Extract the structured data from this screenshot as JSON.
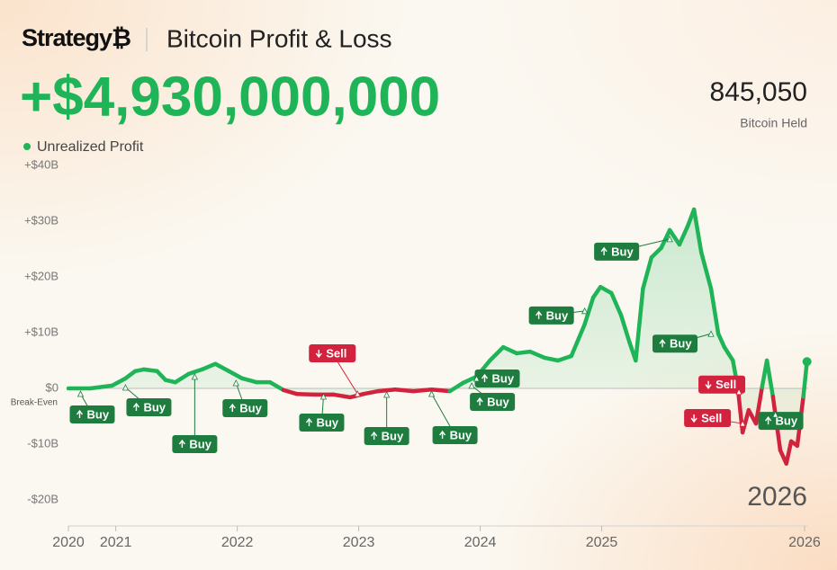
{
  "chart_data": {
    "type": "line",
    "logo": "Strategy₿",
    "title": "Bitcoin Profit & Loss",
    "headline": "+$4,930,000,000",
    "stat": {
      "value": "845,050",
      "label": "Bitcoin Held"
    },
    "watermark": "2026",
    "zero_label": "Break-Even",
    "x": [
      2020.61,
      2020.79,
      2020.97,
      2021.08,
      2021.16,
      2021.23,
      2021.34,
      2021.41,
      2021.49,
      2021.6,
      2021.71,
      2021.82,
      2021.93,
      2022.04,
      2022.16,
      2022.27,
      2022.38,
      2022.49,
      2022.64,
      2022.79,
      2022.93,
      2023.04,
      2023.16,
      2023.3,
      2023.45,
      2023.6,
      2023.75,
      2023.86,
      2023.97,
      2024.08,
      2024.19,
      2024.3,
      2024.41,
      2024.53,
      2024.64,
      2024.75,
      2024.86,
      2024.93,
      2024.99,
      2025.08,
      2025.16,
      2025.23,
      2025.28,
      2025.34,
      2025.41,
      2025.49,
      2025.56,
      2025.64,
      2025.71,
      2025.76,
      2025.82,
      2025.9,
      2025.96,
      2026.01,
      2026.08,
      2026.12,
      2026.16,
      2026.21,
      2026.27,
      2026.32,
      2026.36,
      2026.41,
      2026.47,
      2026.52,
      2026.56,
      2026.61,
      2026.66,
      2026.69
    ],
    "series": [
      {
        "name": "Unrealized Profit",
        "color": "#1fb457",
        "negative_color": "#d3223d",
        "values": [
          0,
          0,
          0.5,
          1.8,
          3.1,
          3.4,
          3.1,
          1.5,
          1.1,
          2.6,
          3.4,
          4.4,
          3.1,
          1.8,
          1.1,
          1.1,
          -0.3,
          -1,
          -1.1,
          -1.1,
          -1.6,
          -1,
          -0.5,
          -0.2,
          -0.5,
          -0.2,
          -0.5,
          1,
          2.1,
          5,
          7.4,
          6.3,
          6.6,
          5.5,
          5,
          5.8,
          11.5,
          16.3,
          18.2,
          17.1,
          13.1,
          8.2,
          5,
          17.9,
          23.5,
          25.2,
          28.4,
          25.8,
          29.2,
          32.1,
          24.4,
          17.9,
          9.8,
          7.4,
          5,
          0.2,
          -7.9,
          -3.9,
          -6.3,
          0.2,
          5,
          -1.5,
          -11.1,
          -13.5,
          -9.5,
          -10.3,
          -1.5,
          4.8
        ]
      }
    ],
    "xlim": [
      2020.61,
      2026.7
    ],
    "xticks": [
      {
        "value": 2020.61,
        "label": "2020"
      },
      2021,
      2022,
      2023,
      2024,
      2025,
      {
        "value": 2026.67,
        "label": "2026"
      }
    ],
    "ylim": [
      -25,
      40
    ],
    "yticks": [
      {
        "value": 40,
        "label": "+$40B"
      },
      {
        "value": 30,
        "label": "+$30B"
      },
      {
        "value": 20,
        "label": "+$20B"
      },
      {
        "value": 10,
        "label": "+$10B"
      },
      {
        "value": 0,
        "label": "$0"
      },
      {
        "value": -10,
        "label": "-$10B"
      },
      {
        "value": -20,
        "label": "-$20B"
      }
    ],
    "grid": false,
    "annotations": [
      {
        "label": "Buy",
        "arrow": "up",
        "color": "#1e7d3e",
        "x": 2020.71,
        "y": -0.97
      },
      {
        "label": "Buy",
        "arrow": "up",
        "color": "#1e7d3e",
        "x": 2021.08,
        "y": 0.16
      },
      {
        "label": "Buy",
        "arrow": "up",
        "color": "#1e7d3e",
        "x": 2021.65,
        "y": 2.1
      },
      {
        "label": "Buy",
        "arrow": "up",
        "color": "#1e7d3e",
        "x": 2021.99,
        "y": 0.97
      },
      {
        "label": "Sell",
        "arrow": "down",
        "color": "#d3223d",
        "x": 2022.99,
        "y": -0.97
      },
      {
        "label": "Buy",
        "arrow": "up",
        "color": "#1e7d3e",
        "x": 2022.71,
        "y": -1.45
      },
      {
        "label": "Buy",
        "arrow": "up",
        "color": "#1e7d3e",
        "x": 2023.23,
        "y": -1.13
      },
      {
        "label": "Buy",
        "arrow": "up",
        "color": "#1e7d3e",
        "x": 2023.6,
        "y": -0.97
      },
      {
        "label": "Buy",
        "arrow": "up",
        "color": "#1e7d3e",
        "x": 2023.97,
        "y": 1.77
      },
      {
        "label": "Buy",
        "arrow": "up",
        "color": "#1e7d3e",
        "x": 2023.93,
        "y": 0.48
      },
      {
        "label": "Buy",
        "arrow": "up",
        "color": "#1e7d3e",
        "x": 2024.86,
        "y": 13.9
      },
      {
        "label": "Buy",
        "arrow": "up",
        "color": "#1e7d3e",
        "x": 2025.56,
        "y": 26.8
      },
      {
        "label": "Buy",
        "arrow": "up",
        "color": "#1e7d3e",
        "x": 2025.9,
        "y": 9.8
      },
      {
        "label": "Sell",
        "arrow": "down",
        "color": "#d3223d",
        "x": 2026.13,
        "y": -0.6
      },
      {
        "label": "Sell",
        "arrow": "down",
        "color": "#d3223d",
        "x": 2026.16,
        "y": -6.3
      },
      {
        "label": "Buy",
        "arrow": "up",
        "color": "#1e7d3e",
        "x": 2026.43,
        "y": -4.7
      }
    ]
  }
}
